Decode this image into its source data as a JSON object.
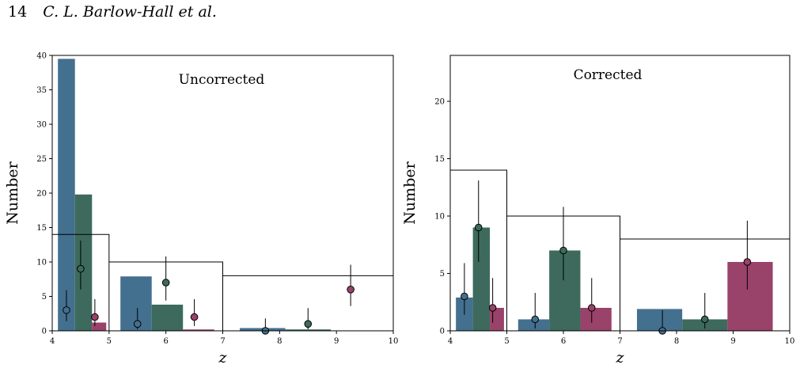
{
  "header": {
    "page_number": "14",
    "authors": "C. L. Barlow-Hall et al."
  },
  "colors": {
    "blue": "#44708f",
    "green": "#3d6a5c",
    "red": "#99426a"
  },
  "chart_data": [
    {
      "type": "bar",
      "title": "Uncorrected",
      "xlabel": "z",
      "ylabel": "Number",
      "xlim": [
        4,
        10
      ],
      "ylim": [
        0,
        40
      ],
      "xticks": [
        "4",
        "5",
        "6",
        "7",
        "8",
        "9",
        "10"
      ],
      "yticks": [
        "0",
        "5",
        "10",
        "15",
        "20",
        "25",
        "30",
        "35",
        "40"
      ],
      "bars": [
        {
          "x0": 4.1,
          "x1": 4.4,
          "value": 39.5,
          "color": "blue"
        },
        {
          "x0": 4.4,
          "x1": 4.7,
          "value": 19.8,
          "color": "green"
        },
        {
          "x0": 4.7,
          "x1": 4.95,
          "value": 1.2,
          "color": "red"
        },
        {
          "x0": 5.2,
          "x1": 5.75,
          "value": 7.9,
          "color": "blue"
        },
        {
          "x0": 5.75,
          "x1": 6.3,
          "value": 3.8,
          "color": "green"
        },
        {
          "x0": 6.3,
          "x1": 6.85,
          "value": 0.2,
          "color": "red"
        },
        {
          "x0": 7.3,
          "x1": 8.1,
          "value": 0.4,
          "color": "blue"
        },
        {
          "x0": 8.1,
          "x1": 8.9,
          "value": 0.2,
          "color": "green"
        }
      ],
      "reference_bins": [
        {
          "x0": 4,
          "x1": 5,
          "value": 14
        },
        {
          "x0": 5,
          "x1": 7,
          "value": 10
        },
        {
          "x0": 7,
          "x1": 10,
          "value": 8
        }
      ],
      "points": [
        {
          "x": 4.25,
          "y": 3,
          "yerr_low": 1.4,
          "yerr_high": 5.9,
          "color": "blue"
        },
        {
          "x": 4.5,
          "y": 9,
          "yerr_low": 6.0,
          "yerr_high": 13.1,
          "color": "green"
        },
        {
          "x": 4.75,
          "y": 2,
          "yerr_low": 0.7,
          "yerr_high": 4.6,
          "color": "red"
        },
        {
          "x": 5.5,
          "y": 1,
          "yerr_low": 0.2,
          "yerr_high": 3.3,
          "color": "blue"
        },
        {
          "x": 6.0,
          "y": 7,
          "yerr_low": 4.4,
          "yerr_high": 10.8,
          "color": "green"
        },
        {
          "x": 6.5,
          "y": 2,
          "yerr_low": 0.7,
          "yerr_high": 4.6,
          "color": "red"
        },
        {
          "x": 7.75,
          "y": 0,
          "yerr_low": 0,
          "yerr_high": 1.8,
          "color": "blue"
        },
        {
          "x": 8.5,
          "y": 1,
          "yerr_low": 0.2,
          "yerr_high": 3.3,
          "color": "green"
        },
        {
          "x": 9.25,
          "y": 6,
          "yerr_low": 3.6,
          "yerr_high": 9.6,
          "color": "red"
        }
      ]
    },
    {
      "type": "bar",
      "title": "Corrected",
      "xlabel": "z",
      "ylabel": "Number",
      "xlim": [
        4,
        10
      ],
      "ylim": [
        0,
        24
      ],
      "xticks": [
        "4",
        "5",
        "6",
        "7",
        "8",
        "9",
        "10"
      ],
      "yticks": [
        "0",
        "5",
        "10",
        "15",
        "20"
      ],
      "bars": [
        {
          "x0": 4.1,
          "x1": 4.4,
          "value": 2.9,
          "color": "blue"
        },
        {
          "x0": 4.4,
          "x1": 4.7,
          "value": 9.0,
          "color": "green"
        },
        {
          "x0": 4.7,
          "x1": 4.95,
          "value": 2.0,
          "color": "red"
        },
        {
          "x0": 5.2,
          "x1": 5.75,
          "value": 1.0,
          "color": "blue"
        },
        {
          "x0": 5.75,
          "x1": 6.3,
          "value": 7.0,
          "color": "green"
        },
        {
          "x0": 6.3,
          "x1": 6.85,
          "value": 2.0,
          "color": "red"
        },
        {
          "x0": 7.3,
          "x1": 8.1,
          "value": 1.9,
          "color": "blue"
        },
        {
          "x0": 8.1,
          "x1": 8.9,
          "value": 1.0,
          "color": "green"
        },
        {
          "x0": 8.9,
          "x1": 9.7,
          "value": 6.0,
          "color": "red"
        }
      ],
      "reference_bins": [
        {
          "x0": 4,
          "x1": 5,
          "value": 14
        },
        {
          "x0": 5,
          "x1": 7,
          "value": 10
        },
        {
          "x0": 7,
          "x1": 10,
          "value": 8
        }
      ],
      "points": [
        {
          "x": 4.25,
          "y": 3,
          "yerr_low": 1.4,
          "yerr_high": 5.9,
          "color": "blue"
        },
        {
          "x": 4.5,
          "y": 9,
          "yerr_low": 6.0,
          "yerr_high": 13.1,
          "color": "green"
        },
        {
          "x": 4.75,
          "y": 2,
          "yerr_low": 0.7,
          "yerr_high": 4.6,
          "color": "red"
        },
        {
          "x": 5.5,
          "y": 1,
          "yerr_low": 0.2,
          "yerr_high": 3.3,
          "color": "blue"
        },
        {
          "x": 6.0,
          "y": 7,
          "yerr_low": 4.4,
          "yerr_high": 10.8,
          "color": "green"
        },
        {
          "x": 6.5,
          "y": 2,
          "yerr_low": 0.7,
          "yerr_high": 4.6,
          "color": "red"
        },
        {
          "x": 7.75,
          "y": 0,
          "yerr_low": 0,
          "yerr_high": 1.8,
          "color": "blue"
        },
        {
          "x": 8.5,
          "y": 1,
          "yerr_low": 0.2,
          "yerr_high": 3.3,
          "color": "green"
        },
        {
          "x": 9.25,
          "y": 6,
          "yerr_low": 3.6,
          "yerr_high": 9.6,
          "color": "red"
        }
      ]
    }
  ]
}
